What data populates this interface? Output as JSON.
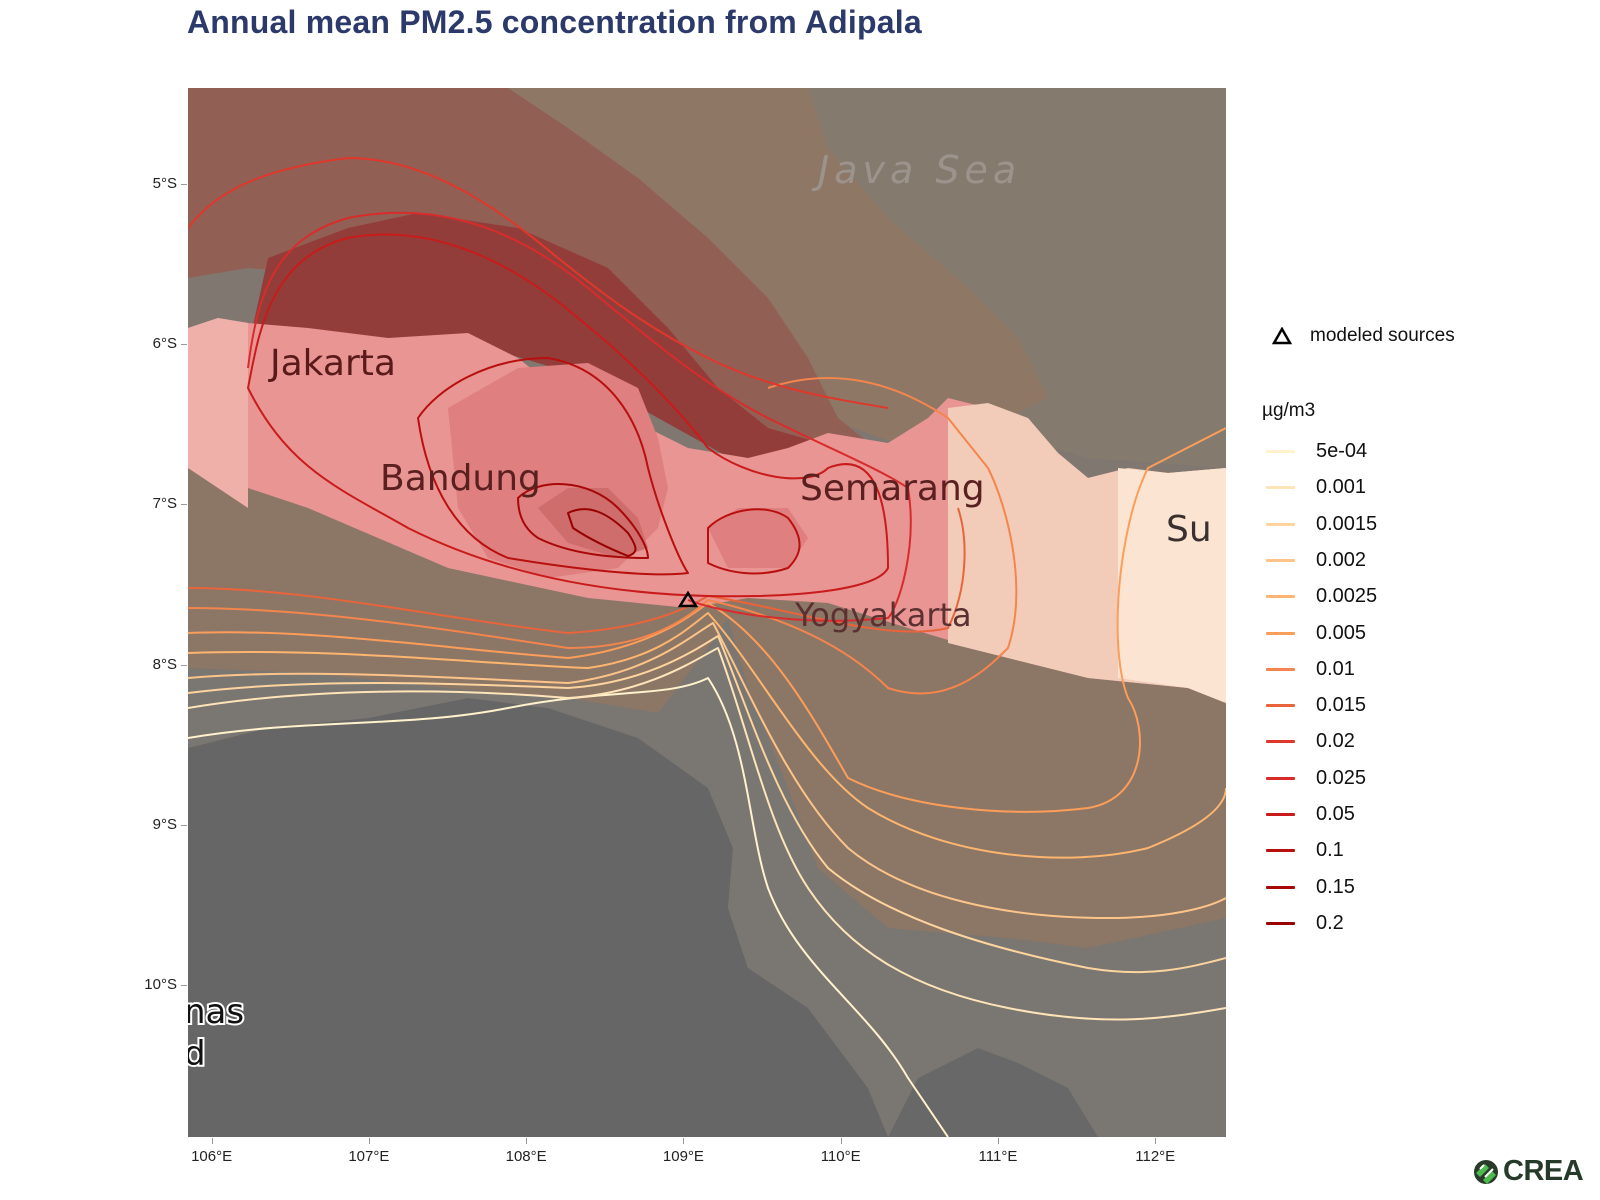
{
  "title": "Annual mean PM2.5 concentration from Adipala",
  "chart_data": {
    "type": "contour-map",
    "title": "Annual mean PM2.5 concentration from Adipala",
    "xlabel": "",
    "ylabel": "",
    "x_ticks": [
      "106°E",
      "107°E",
      "108°E",
      "109°E",
      "110°E",
      "111°E",
      "112°E"
    ],
    "x_tick_values": [
      106,
      107,
      108,
      109,
      110,
      111,
      112
    ],
    "y_ticks": [
      "5°S",
      "6°S",
      "7°S",
      "8°S",
      "9°S",
      "10°S"
    ],
    "y_tick_values": [
      -5,
      -6,
      -7,
      -8,
      -9,
      -10
    ],
    "xlim": [
      105.85,
      112.45
    ],
    "ylim": [
      -10.95,
      -4.4
    ],
    "source": {
      "name": "Adipala",
      "lon": 109.13,
      "lat": -7.68,
      "marker": "triangle-open"
    },
    "legend": {
      "source_label": "modeled sources",
      "unit_title": "µg/m3",
      "levels": [
        {
          "label": "5e-04",
          "value": 0.0005,
          "color": "#fff2cc"
        },
        {
          "label": "0.001",
          "value": 0.001,
          "color": "#fee4b8"
        },
        {
          "label": "0.0015",
          "value": 0.0015,
          "color": "#fdd49e"
        },
        {
          "label": "0.002",
          "value": 0.002,
          "color": "#fdc48a"
        },
        {
          "label": "0.0025",
          "value": 0.0025,
          "color": "#fdb56f"
        },
        {
          "label": "0.005",
          "value": 0.005,
          "color": "#fc9d59"
        },
        {
          "label": "0.01",
          "value": 0.01,
          "color": "#f4854c"
        },
        {
          "label": "0.015",
          "value": 0.015,
          "color": "#e9643a"
        },
        {
          "label": "0.02",
          "value": 0.02,
          "color": "#e0372b"
        },
        {
          "label": "0.025",
          "value": 0.025,
          "color": "#d82c2c"
        },
        {
          "label": "0.05",
          "value": 0.05,
          "color": "#c81b1b"
        },
        {
          "label": "0.1",
          "value": 0.1,
          "color": "#b80f0f"
        },
        {
          "label": "0.15",
          "value": 0.15,
          "color": "#a80808"
        },
        {
          "label": "0.2",
          "value": 0.2,
          "color": "#990000"
        }
      ]
    }
  },
  "map_labels": {
    "sea": "Java Sea",
    "cities": [
      "Jakarta",
      "Bandung",
      "Semarang",
      "Yogyakarta"
    ],
    "partial_right": "Su",
    "partial_corner_line1": "nas",
    "partial_corner_line2": "d"
  },
  "branding": {
    "logo_text": "CREA"
  }
}
